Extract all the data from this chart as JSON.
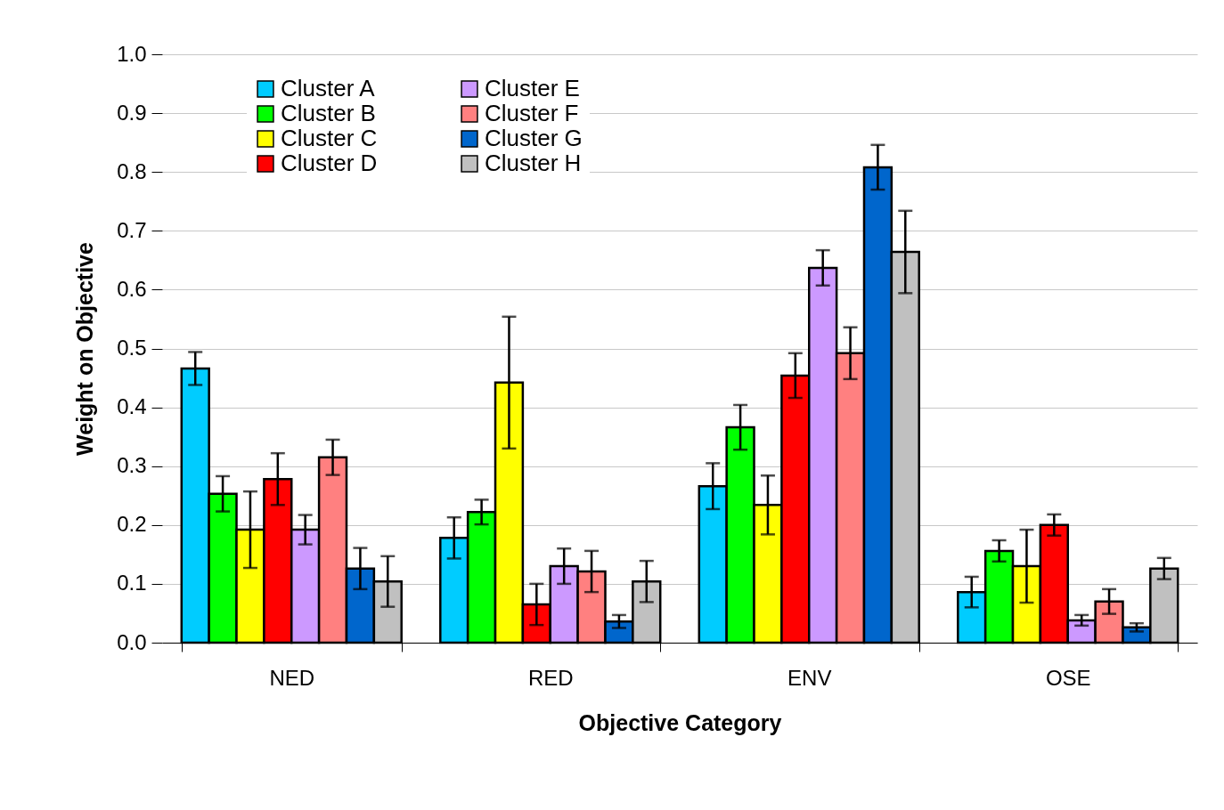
{
  "chart_data": {
    "type": "bar",
    "xlabel": "Objective Category",
    "ylabel": "Weight on Objective",
    "categories": [
      "NED",
      "RED",
      "ENV",
      "OSE"
    ],
    "series": [
      {
        "name": "Cluster A",
        "color": "#00ccff",
        "values": [
          0.466,
          0.178,
          0.266,
          0.086
        ],
        "errors": [
          0.028,
          0.035,
          0.039,
          0.026
        ]
      },
      {
        "name": "Cluster B",
        "color": "#00ff00",
        "values": [
          0.253,
          0.222,
          0.366,
          0.156
        ],
        "errors": [
          0.03,
          0.021,
          0.038,
          0.018
        ]
      },
      {
        "name": "Cluster C",
        "color": "#ffff00",
        "values": [
          0.192,
          0.442,
          0.234,
          0.13
        ],
        "errors": [
          0.065,
          0.112,
          0.05,
          0.062
        ]
      },
      {
        "name": "Cluster D",
        "color": "#ff0000",
        "values": [
          0.278,
          0.065,
          0.454,
          0.2
        ],
        "errors": [
          0.044,
          0.035,
          0.038,
          0.018
        ]
      },
      {
        "name": "Cluster E",
        "color": "#cc99ff",
        "values": [
          0.192,
          0.13,
          0.637,
          0.038
        ],
        "errors": [
          0.025,
          0.03,
          0.03,
          0.009
        ]
      },
      {
        "name": "Cluster F",
        "color": "#ff8080",
        "values": [
          0.315,
          0.121,
          0.492,
          0.07
        ],
        "errors": [
          0.03,
          0.035,
          0.044,
          0.021
        ]
      },
      {
        "name": "Cluster G",
        "color": "#0066cc",
        "values": [
          0.126,
          0.036,
          0.808,
          0.026
        ],
        "errors": [
          0.035,
          0.011,
          0.038,
          0.007
        ]
      },
      {
        "name": "Cluster H",
        "color": "#c0c0c0",
        "values": [
          0.104,
          0.104,
          0.664,
          0.126
        ],
        "errors": [
          0.043,
          0.035,
          0.07,
          0.018
        ]
      }
    ],
    "ylim": [
      0,
      1
    ],
    "yticks": [
      {
        "value": 0,
        "label": "0.0"
      },
      {
        "value": 0.1,
        "label": "0.1"
      },
      {
        "value": 0.2,
        "label": "0.2"
      },
      {
        "value": 0.3,
        "label": "0.3"
      },
      {
        "value": 0.4,
        "label": "0.4"
      },
      {
        "value": 0.5,
        "label": "0.5"
      },
      {
        "value": 0.6,
        "label": "0.6"
      },
      {
        "value": 0.7,
        "label": "0.7"
      },
      {
        "value": 0.8,
        "label": "0.8"
      },
      {
        "value": 0.9,
        "label": "0.9"
      },
      {
        "value": 1,
        "label": "1.0"
      }
    ],
    "grid": "y",
    "legend": "top left"
  }
}
